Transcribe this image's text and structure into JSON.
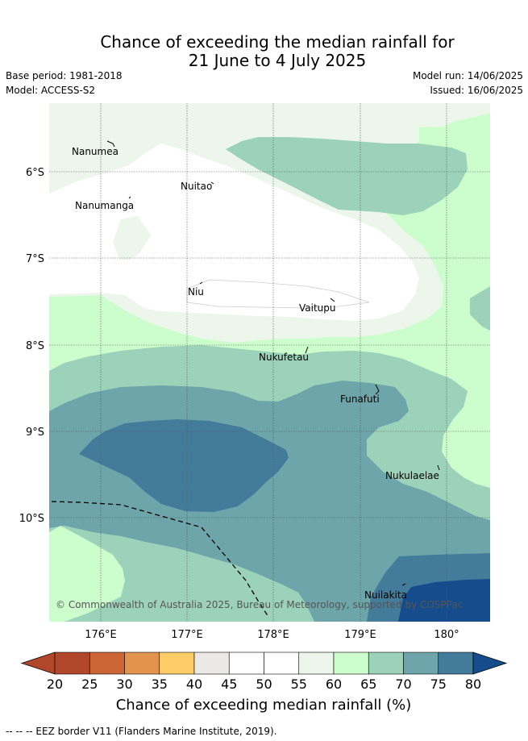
{
  "header": {
    "title_line1": "Chance of exceeding the median rainfall for",
    "title_line2": "21 June to 4 July 2025",
    "base_period": "Base period: 1981-2018",
    "model": "Model: ACCESS-S2",
    "model_run": "Model run: 14/06/2025",
    "issued": "Issued: 16/06/2025"
  },
  "map": {
    "islands": [
      "Nanumea",
      "Nuitao",
      "Nanumanga",
      "Niu",
      "Vaitupu",
      "Nukufetau",
      "Funafuti",
      "Nukulaelae",
      "Nuilakita"
    ],
    "lat_labels": [
      "6°S",
      "7°S",
      "8°S",
      "9°S",
      "10°S"
    ],
    "lon_labels": [
      "176°E",
      "177°E",
      "178°E",
      "179°E",
      "180°"
    ],
    "copyright": "© Commonwealth of Australia 2025, Bureau of Meteorology, supported by COSPPac"
  },
  "colorbar": {
    "ticks": [
      "20",
      "25",
      "30",
      "35",
      "40",
      "45",
      "50",
      "55",
      "60",
      "65",
      "70",
      "75",
      "80"
    ],
    "colors": [
      "#b0462a",
      "#cc6535",
      "#e2944c",
      "#fccd66",
      "#ebe9e6",
      "#ffffff",
      "#ffffff",
      "#ecf6ea",
      "#ccfdcc",
      "#9dd2ba",
      "#6ea5aa",
      "#437c9b",
      "#154d8c"
    ],
    "label": "Chance of exceeding median rainfall (%)"
  },
  "footer": {
    "eez_note": "-- -- -- EEZ border V11 (Flanders Marine Institute, 2019)."
  }
}
